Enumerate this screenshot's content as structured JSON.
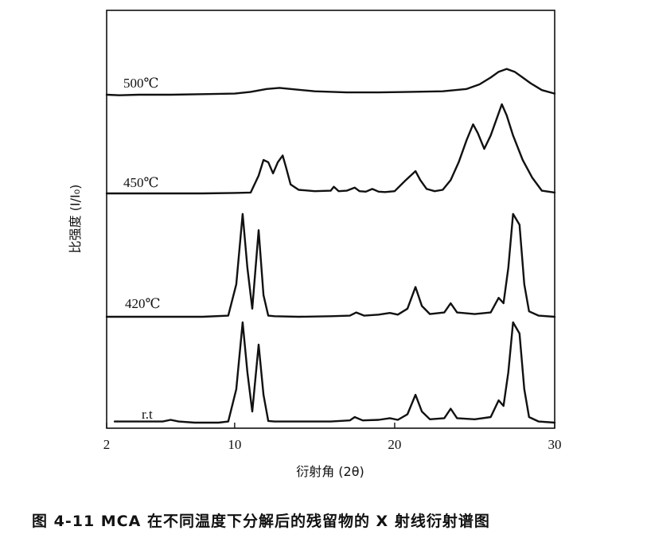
{
  "chart_data": {
    "type": "line",
    "xlabel": "衍射角 (2θ)",
    "ylabel": "比强度 (I/I₀)",
    "xlim": [
      2,
      30
    ],
    "xticks": [
      2,
      10,
      20,
      30
    ],
    "xtick_labels": [
      "2",
      "10",
      "20",
      "30"
    ],
    "grid": false,
    "series": [
      {
        "name": "500℃",
        "x": [
          2,
          2.8,
          4,
          6,
          8,
          10,
          11,
          12,
          12.8,
          13.5,
          15,
          17,
          19,
          21,
          23,
          24.5,
          25.3,
          26,
          26.5,
          27,
          27.5,
          28,
          28.5,
          29.2,
          30
        ],
        "y": [
          0.0,
          -0.01,
          0.0,
          0.0,
          0.01,
          0.02,
          0.05,
          0.1,
          0.12,
          0.1,
          0.06,
          0.04,
          0.04,
          0.05,
          0.06,
          0.1,
          0.18,
          0.3,
          0.4,
          0.45,
          0.4,
          0.3,
          0.2,
          0.08,
          0.02
        ]
      },
      {
        "name": "450℃",
        "x": [
          2,
          4,
          6,
          8,
          10,
          11,
          11.5,
          11.8,
          12.1,
          12.4,
          12.7,
          13.0,
          13.2,
          13.5,
          14,
          15,
          16,
          16.2,
          16.5,
          17,
          17.5,
          17.8,
          18.2,
          18.6,
          19,
          19.4,
          20,
          20.7,
          21.3,
          21.6,
          22,
          22.5,
          23,
          23.5,
          24,
          24.5,
          24.9,
          25.2,
          25.6,
          26,
          26.4,
          26.7,
          27,
          27.4,
          28,
          28.6,
          29.2,
          30
        ],
        "y": [
          0.0,
          0.0,
          0.0,
          0.0,
          0.01,
          0.02,
          0.4,
          0.75,
          0.7,
          0.45,
          0.7,
          0.85,
          0.6,
          0.2,
          0.08,
          0.05,
          0.06,
          0.15,
          0.05,
          0.06,
          0.13,
          0.05,
          0.04,
          0.1,
          0.04,
          0.03,
          0.05,
          0.3,
          0.5,
          0.3,
          0.1,
          0.05,
          0.08,
          0.3,
          0.7,
          1.2,
          1.55,
          1.35,
          1.0,
          1.3,
          1.7,
          2.0,
          1.75,
          1.3,
          0.75,
          0.35,
          0.06,
          0.02
        ]
      },
      {
        "name": "420℃",
        "x": [
          2,
          4,
          6,
          8,
          9.6,
          10.1,
          10.5,
          10.8,
          11.1,
          11.5,
          11.8,
          12.1,
          12.5,
          14,
          16,
          17.2,
          17.6,
          18.1,
          19,
          19.7,
          20.2,
          20.8,
          21.3,
          21.7,
          22.2,
          23.1,
          23.5,
          23.9,
          25,
          26,
          26.5,
          26.8,
          27.1,
          27.4,
          27.8,
          28.1,
          28.4,
          29,
          30
        ],
        "y": [
          0.0,
          0.0,
          0.0,
          0.0,
          0.02,
          0.6,
          1.9,
          0.9,
          0.15,
          1.6,
          0.4,
          0.02,
          0.01,
          0.0,
          0.01,
          0.02,
          0.08,
          0.02,
          0.04,
          0.07,
          0.04,
          0.15,
          0.55,
          0.2,
          0.05,
          0.08,
          0.25,
          0.08,
          0.05,
          0.08,
          0.35,
          0.25,
          0.9,
          1.9,
          1.7,
          0.6,
          0.1,
          0.02,
          0.0
        ]
      },
      {
        "name": "r.t",
        "x": [
          2.5,
          4,
          5.5,
          6,
          6.5,
          7.5,
          9,
          9.6,
          10.1,
          10.5,
          10.8,
          11.1,
          11.5,
          11.8,
          12.1,
          12.5,
          14,
          16,
          17.2,
          17.5,
          18,
          19,
          19.7,
          20.2,
          20.8,
          21.3,
          21.7,
          22.2,
          23.1,
          23.5,
          23.9,
          25,
          26,
          26.5,
          26.8,
          27.1,
          27.4,
          27.8,
          28.1,
          28.4,
          29,
          30
        ],
        "y": [
          0.02,
          0.02,
          0.02,
          0.05,
          0.02,
          0.0,
          0.0,
          0.02,
          0.6,
          1.8,
          0.9,
          0.2,
          1.4,
          0.5,
          0.03,
          0.02,
          0.02,
          0.02,
          0.04,
          0.1,
          0.04,
          0.05,
          0.08,
          0.05,
          0.15,
          0.5,
          0.2,
          0.06,
          0.08,
          0.25,
          0.08,
          0.06,
          0.1,
          0.4,
          0.3,
          0.9,
          1.8,
          1.6,
          0.6,
          0.1,
          0.02,
          0.0
        ]
      }
    ]
  },
  "caption": "图 4-11   MCA 在不同温度下分解后的残留物的 X 射线衍射谱图"
}
